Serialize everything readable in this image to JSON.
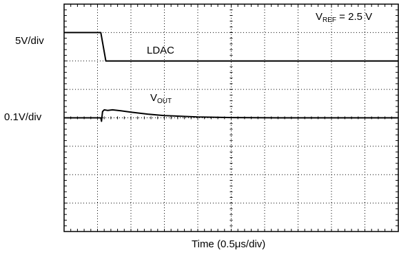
{
  "chart_data": {
    "type": "line",
    "subtype": "oscilloscope-capture",
    "divisions": {
      "horizontal": 10,
      "vertical": 8,
      "minor_ticks_per_division": 5
    },
    "grid": "dotted",
    "xlabel": "Time (0.5μs/div)",
    "x_units": "divisions",
    "x_scale": "0.5 μs/div",
    "annotation": {
      "main": "V",
      "sub": "REF",
      "value": " = 2.5 V"
    },
    "channels": [
      {
        "name": "LDAC",
        "scale_label": "5V/div",
        "ground_division": 2.0,
        "x_div": [
          0.0,
          1.1,
          1.1,
          1.25,
          10.0
        ],
        "y_div": [
          3.0,
          3.0,
          3.0,
          2.0,
          2.0
        ]
      },
      {
        "name_main": "V",
        "name_sub": "OUT",
        "scale_label": "0.1V/div",
        "ground_division": 0.0,
        "x_div": [
          0.0,
          1.05,
          1.1,
          1.12,
          1.15,
          1.2,
          1.3,
          1.45,
          1.7,
          2.0,
          2.5,
          3.0,
          4.0,
          5.0,
          6.5,
          8.0,
          10.0
        ],
        "y_div": [
          0.0,
          0.0,
          0.0,
          -0.12,
          0.22,
          0.28,
          0.26,
          0.28,
          0.25,
          0.2,
          0.13,
          0.08,
          0.03,
          0.01,
          0.0,
          0.0,
          0.0
        ]
      }
    ]
  }
}
